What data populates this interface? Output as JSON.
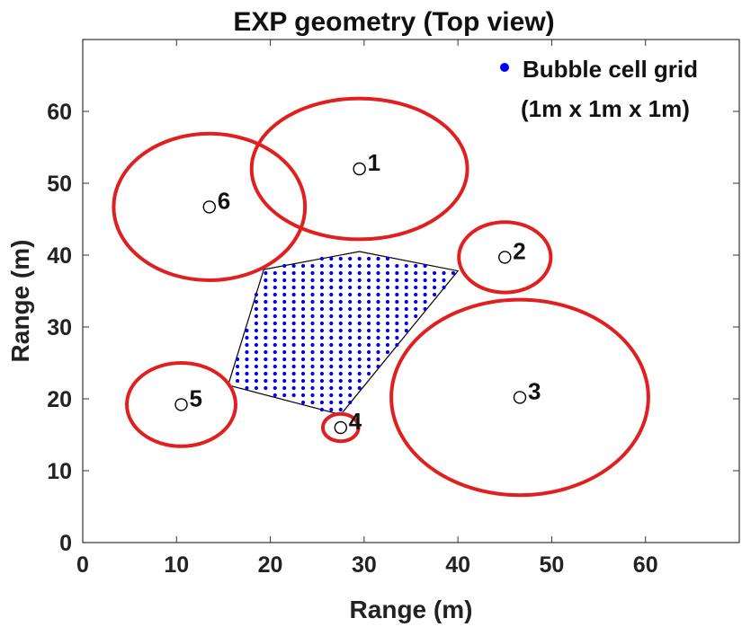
{
  "chart_data": {
    "type": "scatter",
    "title": "EXP geometry (Top view)",
    "xlabel": "Range (m)",
    "ylabel": "Range (m)",
    "xlim": [
      0,
      70
    ],
    "ylim": [
      0,
      70
    ],
    "xticks": [
      0,
      10,
      20,
      30,
      40,
      50,
      60
    ],
    "yticks": [
      0,
      10,
      20,
      30,
      40,
      50,
      60
    ],
    "legend": {
      "position": "top-right",
      "marker_color": "#0000ee",
      "entries": [
        "Bubble cell grid",
        "(1m x 1m x 1m)"
      ]
    },
    "receivers": [
      {
        "label": "1",
        "x": 29.5,
        "y": 52.0,
        "ring_radius_x": 11.5,
        "ring_radius_y": 9.8
      },
      {
        "label": "2",
        "x": 45.0,
        "y": 39.7,
        "ring_radius_x": 4.9,
        "ring_radius_y": 4.9
      },
      {
        "label": "3",
        "x": 46.6,
        "y": 20.2,
        "ring_radius_x": 13.7,
        "ring_radius_y": 13.6
      },
      {
        "label": "4",
        "x": 27.5,
        "y": 16.0,
        "ring_radius_x": 1.9,
        "ring_radius_y": 1.9
      },
      {
        "label": "5",
        "x": 10.5,
        "y": 19.2,
        "ring_radius_x": 5.8,
        "ring_radius_y": 5.8
      },
      {
        "label": "6",
        "x": 13.5,
        "y": 46.7,
        "ring_radius_x": 10.2,
        "ring_radius_y": 10.2
      }
    ],
    "bubble_cell_region": {
      "polygon": [
        [
          19.3,
          38.0
        ],
        [
          29.5,
          40.5
        ],
        [
          40.0,
          37.8
        ],
        [
          27.5,
          17.8
        ],
        [
          15.5,
          21.9
        ]
      ],
      "grid_spacing": 1.0
    },
    "colors": {
      "ring": "#e02020",
      "grid_dot": "#0000ee",
      "polygon": "#000000",
      "marker": "#000000"
    }
  }
}
